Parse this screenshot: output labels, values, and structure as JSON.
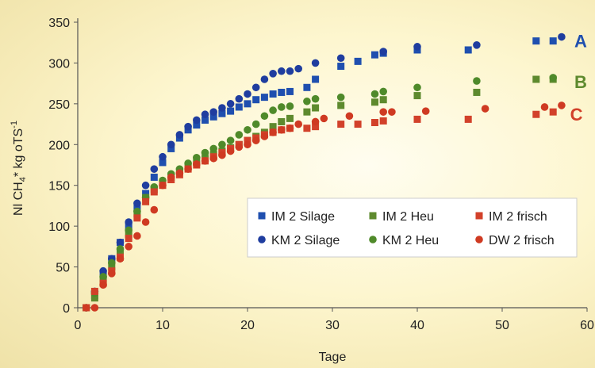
{
  "chart_data": {
    "type": "scatter",
    "xlabel": "Tage",
    "ylabel_main": "Nl CH",
    "ylabel_sub": "4",
    "ylabel_rest": "* kg oTS",
    "ylabel_sup": "-1",
    "xlim": [
      0,
      60
    ],
    "ylim": [
      0,
      350
    ],
    "xticks": [
      0,
      10,
      20,
      30,
      40,
      50,
      60
    ],
    "yticks": [
      0,
      50,
      100,
      150,
      200,
      250,
      300,
      350
    ],
    "grid": false,
    "legend_position": "bottom-right",
    "series": [
      {
        "name": "IM 2 Silage",
        "marker": "square",
        "color": "#1f4faf",
        "points": [
          [
            1,
            0
          ],
          [
            2,
            15
          ],
          [
            3,
            40
          ],
          [
            4,
            60
          ],
          [
            5,
            80
          ],
          [
            6,
            100
          ],
          [
            7,
            122
          ],
          [
            8,
            140
          ],
          [
            9,
            160
          ],
          [
            10,
            178
          ],
          [
            11,
            195
          ],
          [
            12,
            208
          ],
          [
            13,
            218
          ],
          [
            14,
            224
          ],
          [
            15,
            230
          ],
          [
            16,
            234
          ],
          [
            17,
            238
          ],
          [
            18,
            241
          ],
          [
            19,
            246
          ],
          [
            20,
            250
          ],
          [
            21,
            255
          ],
          [
            22,
            258
          ],
          [
            23,
            262
          ],
          [
            24,
            264
          ],
          [
            25,
            265
          ],
          [
            27,
            270
          ],
          [
            28,
            280
          ],
          [
            31,
            296
          ],
          [
            33,
            302
          ],
          [
            35,
            310
          ],
          [
            36,
            312
          ],
          [
            40,
            316
          ],
          [
            46,
            316
          ],
          [
            54,
            327
          ],
          [
            56,
            327
          ]
        ]
      },
      {
        "name": "KM 2 Silage",
        "marker": "circle",
        "color": "#1f3d9f",
        "points": [
          [
            1,
            0
          ],
          [
            2,
            20
          ],
          [
            3,
            45
          ],
          [
            4,
            60
          ],
          [
            5,
            80
          ],
          [
            6,
            105
          ],
          [
            7,
            128
          ],
          [
            8,
            150
          ],
          [
            9,
            170
          ],
          [
            10,
            185
          ],
          [
            11,
            200
          ],
          [
            12,
            212
          ],
          [
            13,
            222
          ],
          [
            14,
            230
          ],
          [
            15,
            237
          ],
          [
            16,
            240
          ],
          [
            17,
            245
          ],
          [
            18,
            250
          ],
          [
            19,
            256
          ],
          [
            20,
            262
          ],
          [
            21,
            270
          ],
          [
            22,
            280
          ],
          [
            23,
            287
          ],
          [
            24,
            290
          ],
          [
            25,
            290
          ],
          [
            26,
            293
          ],
          [
            28,
            300
          ],
          [
            31,
            306
          ],
          [
            36,
            314
          ],
          [
            40,
            320
          ],
          [
            47,
            322
          ],
          [
            57,
            332
          ]
        ]
      },
      {
        "name": "IM 2 Heu",
        "marker": "square",
        "color": "#5e8a2e",
        "points": [
          [
            1,
            0
          ],
          [
            2,
            12
          ],
          [
            3,
            35
          ],
          [
            4,
            50
          ],
          [
            5,
            70
          ],
          [
            6,
            90
          ],
          [
            7,
            115
          ],
          [
            8,
            135
          ],
          [
            9,
            145
          ],
          [
            10,
            152
          ],
          [
            11,
            160
          ],
          [
            12,
            167
          ],
          [
            13,
            172
          ],
          [
            14,
            178
          ],
          [
            15,
            183
          ],
          [
            16,
            188
          ],
          [
            17,
            192
          ],
          [
            18,
            196
          ],
          [
            19,
            200
          ],
          [
            20,
            205
          ],
          [
            21,
            210
          ],
          [
            22,
            215
          ],
          [
            23,
            222
          ],
          [
            24,
            228
          ],
          [
            25,
            232
          ],
          [
            27,
            240
          ],
          [
            28,
            245
          ],
          [
            31,
            248
          ],
          [
            35,
            252
          ],
          [
            36,
            255
          ],
          [
            40,
            260
          ],
          [
            47,
            264
          ],
          [
            54,
            280
          ],
          [
            56,
            280
          ]
        ]
      },
      {
        "name": "KM 2 Heu",
        "marker": "circle",
        "color": "#4f8a2a",
        "points": [
          [
            1,
            0
          ],
          [
            2,
            18
          ],
          [
            3,
            38
          ],
          [
            4,
            55
          ],
          [
            5,
            72
          ],
          [
            6,
            95
          ],
          [
            7,
            118
          ],
          [
            8,
            135
          ],
          [
            9,
            148
          ],
          [
            10,
            156
          ],
          [
            11,
            164
          ],
          [
            12,
            170
          ],
          [
            13,
            177
          ],
          [
            14,
            184
          ],
          [
            15,
            190
          ],
          [
            16,
            195
          ],
          [
            17,
            200
          ],
          [
            18,
            205
          ],
          [
            19,
            212
          ],
          [
            20,
            218
          ],
          [
            21,
            225
          ],
          [
            22,
            235
          ],
          [
            23,
            242
          ],
          [
            24,
            246
          ],
          [
            25,
            247
          ],
          [
            27,
            253
          ],
          [
            28,
            256
          ],
          [
            31,
            258
          ],
          [
            35,
            262
          ],
          [
            36,
            265
          ],
          [
            40,
            270
          ],
          [
            47,
            278
          ],
          [
            56,
            282
          ]
        ]
      },
      {
        "name": "IM 2 frisch",
        "marker": "square",
        "color": "#d2412a",
        "points": [
          [
            1,
            0
          ],
          [
            2,
            20
          ],
          [
            3,
            30
          ],
          [
            4,
            45
          ],
          [
            5,
            62
          ],
          [
            6,
            85
          ],
          [
            7,
            110
          ],
          [
            8,
            130
          ],
          [
            9,
            142
          ],
          [
            10,
            150
          ],
          [
            11,
            157
          ],
          [
            12,
            163
          ],
          [
            13,
            170
          ],
          [
            14,
            175
          ],
          [
            15,
            180
          ],
          [
            16,
            185
          ],
          [
            17,
            190
          ],
          [
            18,
            195
          ],
          [
            19,
            200
          ],
          [
            20,
            205
          ],
          [
            21,
            208
          ],
          [
            22,
            212
          ],
          [
            23,
            215
          ],
          [
            24,
            218
          ],
          [
            25,
            220
          ],
          [
            27,
            220
          ],
          [
            28,
            222
          ],
          [
            31,
            225
          ],
          [
            33,
            225
          ],
          [
            35,
            227
          ],
          [
            36,
            229
          ],
          [
            40,
            231
          ],
          [
            46,
            231
          ],
          [
            54,
            237
          ],
          [
            56,
            240
          ]
        ]
      },
      {
        "name": "DW 2 frisch",
        "marker": "circle",
        "color": "#cf3a22",
        "points": [
          [
            1,
            0
          ],
          [
            2,
            0
          ],
          [
            3,
            28
          ],
          [
            4,
            42
          ],
          [
            5,
            60
          ],
          [
            6,
            75
          ],
          [
            7,
            88
          ],
          [
            8,
            105
          ],
          [
            9,
            120
          ],
          [
            10,
            150
          ],
          [
            11,
            160
          ],
          [
            12,
            165
          ],
          [
            13,
            170
          ],
          [
            14,
            176
          ],
          [
            15,
            180
          ],
          [
            16,
            183
          ],
          [
            17,
            187
          ],
          [
            18,
            192
          ],
          [
            19,
            197
          ],
          [
            20,
            200
          ],
          [
            21,
            205
          ],
          [
            22,
            210
          ],
          [
            23,
            215
          ],
          [
            24,
            218
          ],
          [
            25,
            220
          ],
          [
            26,
            225
          ],
          [
            28,
            228
          ],
          [
            29,
            232
          ],
          [
            32,
            235
          ],
          [
            36,
            240
          ],
          [
            37,
            240
          ],
          [
            41,
            241
          ],
          [
            48,
            244
          ],
          [
            55,
            246
          ],
          [
            57,
            248
          ]
        ]
      }
    ],
    "annotations": [
      {
        "text": "A",
        "x": 58.5,
        "y": 327,
        "color": "#1f4faf"
      },
      {
        "text": "B",
        "x": 58.5,
        "y": 277,
        "color": "#5e8a2e"
      },
      {
        "text": "C",
        "x": 58,
        "y": 237,
        "color": "#d2412a"
      }
    ]
  }
}
